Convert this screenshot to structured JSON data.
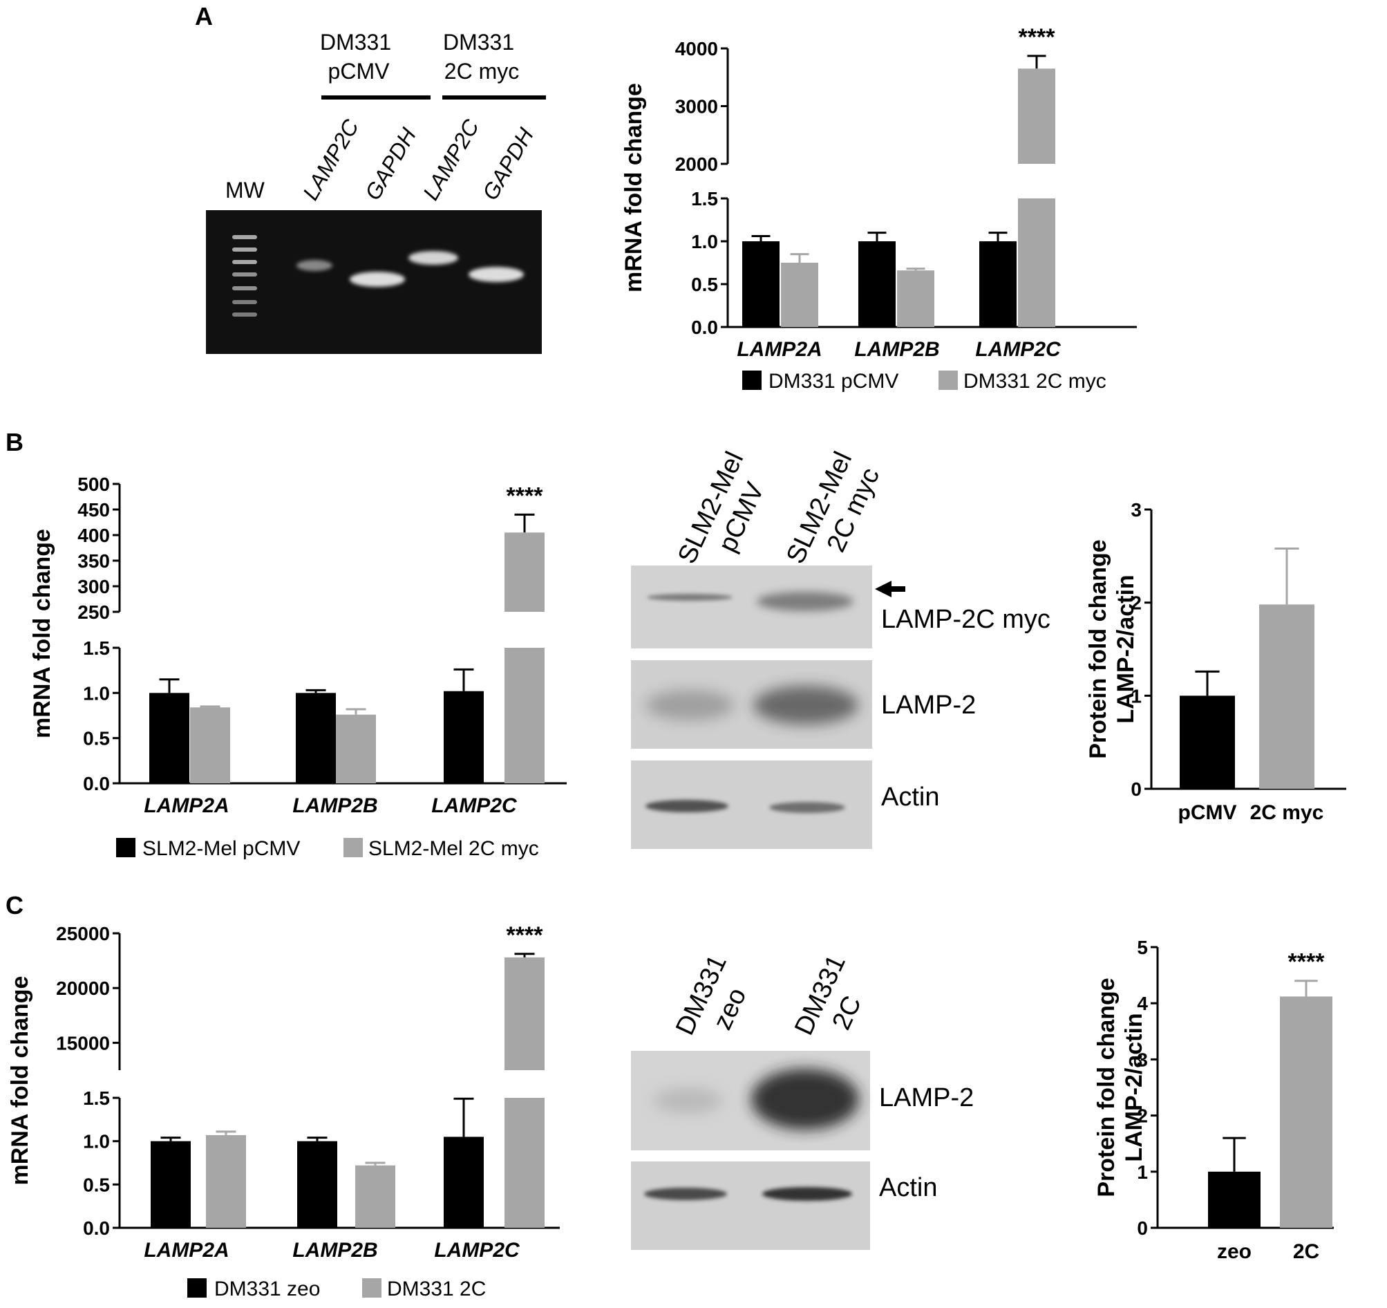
{
  "panels": {
    "a": {
      "label": "A"
    },
    "b": {
      "label": "B"
    },
    "c": {
      "label": "C"
    }
  },
  "gel_a": {
    "groups": [
      "DM331\npCMV",
      "DM331\n2C myc"
    ],
    "lanes": [
      "MW",
      "LAMP2C",
      "GAPDH",
      "LAMP2C",
      "GAPDH"
    ]
  },
  "blot_b": {
    "lanes": [
      "SLM2-Mel\npCMV",
      "SLM2-Mel\n2C myc"
    ],
    "bands": [
      "LAMP-2C myc",
      "LAMP-2",
      "Actin"
    ]
  },
  "blot_c": {
    "lanes": [
      "DM331\nzeo",
      "DM331\n2C"
    ],
    "bands": [
      "LAMP-2",
      "Actin"
    ]
  },
  "colors": {
    "series1": "#000000",
    "series2": "#a6a6a6"
  },
  "chart_data": [
    {
      "id": "A-mRNA",
      "type": "bar",
      "ylabel": "mRNA fold change",
      "categories": [
        "LAMP2A",
        "LAMP2B",
        "LAMP2C"
      ],
      "series": [
        {
          "name": "DM331 pCMV",
          "values": [
            1.0,
            1.0,
            1.0
          ],
          "errors": [
            0.06,
            0.1,
            0.1
          ]
        },
        {
          "name": "DM331 2C myc",
          "values": [
            0.75,
            0.66,
            3650
          ],
          "errors": [
            0.1,
            0.02,
            220
          ]
        }
      ],
      "axis_break": {
        "lower": [
          0,
          1.5
        ],
        "upper": [
          2000,
          4000
        ]
      },
      "yticks_lower": [
        "0.0",
        "0.5",
        "1.0",
        "1.5"
      ],
      "yticks_upper": [
        "2000",
        "3000",
        "4000"
      ],
      "significance": "****",
      "significance_category": "LAMP2C"
    },
    {
      "id": "B-mRNA",
      "type": "bar",
      "ylabel": "mRNA fold change",
      "categories": [
        "LAMP2A",
        "LAMP2B",
        "LAMP2C"
      ],
      "series": [
        {
          "name": "SLM2-Mel pCMV",
          "values": [
            1.0,
            1.0,
            1.02
          ],
          "errors": [
            0.15,
            0.03,
            0.24
          ]
        },
        {
          "name": "SLM2-Mel 2C myc",
          "values": [
            0.84,
            0.76,
            405
          ],
          "errors": [
            0.01,
            0.06,
            35
          ]
        }
      ],
      "axis_break": {
        "lower": [
          0,
          1.5
        ],
        "upper": [
          250,
          500
        ]
      },
      "yticks_lower": [
        "0.0",
        "0.5",
        "1.0",
        "1.5"
      ],
      "yticks_upper": [
        "250",
        "300",
        "350",
        "400",
        "450",
        "500"
      ],
      "significance": "****",
      "significance_category": "LAMP2C"
    },
    {
      "id": "B-protein",
      "type": "bar",
      "ylabel_lines": [
        "Protein fold change",
        "LAMP-2/actin"
      ],
      "categories": [
        "pCMV",
        "2C myc"
      ],
      "values": [
        1.0,
        1.98
      ],
      "errors": [
        0.26,
        0.6
      ],
      "ylim": [
        0,
        3
      ],
      "yticks": [
        "0",
        "1",
        "2",
        "3"
      ]
    },
    {
      "id": "C-mRNA",
      "type": "bar",
      "ylabel": "mRNA fold change",
      "categories": [
        "LAMP2A",
        "LAMP2B",
        "LAMP2C"
      ],
      "series": [
        {
          "name": "DM331 zeo",
          "values": [
            1.0,
            1.0,
            1.05
          ],
          "errors": [
            0.04,
            0.04,
            0.44
          ]
        },
        {
          "name": "DM331 2C",
          "values": [
            1.07,
            0.72,
            22800
          ],
          "errors": [
            0.04,
            0.03,
            320
          ]
        }
      ],
      "axis_break": {
        "lower": [
          0,
          1.5
        ],
        "upper": [
          12500,
          25000
        ]
      },
      "yticks_lower": [
        "0.0",
        "0.5",
        "1.0",
        "1.5"
      ],
      "yticks_upper": [
        "15000",
        "20000",
        "25000"
      ],
      "significance": "****",
      "significance_category": "LAMP2C"
    },
    {
      "id": "C-protein",
      "type": "bar",
      "ylabel_lines": [
        "Protein fold change",
        "LAMP-2/actin"
      ],
      "categories": [
        "zeo",
        "2C"
      ],
      "values": [
        1.0,
        4.12
      ],
      "errors": [
        0.6,
        0.28
      ],
      "ylim": [
        0,
        5
      ],
      "yticks": [
        "0",
        "1",
        "2",
        "3",
        "4",
        "5"
      ],
      "significance": "****",
      "significance_category": "2C"
    }
  ]
}
